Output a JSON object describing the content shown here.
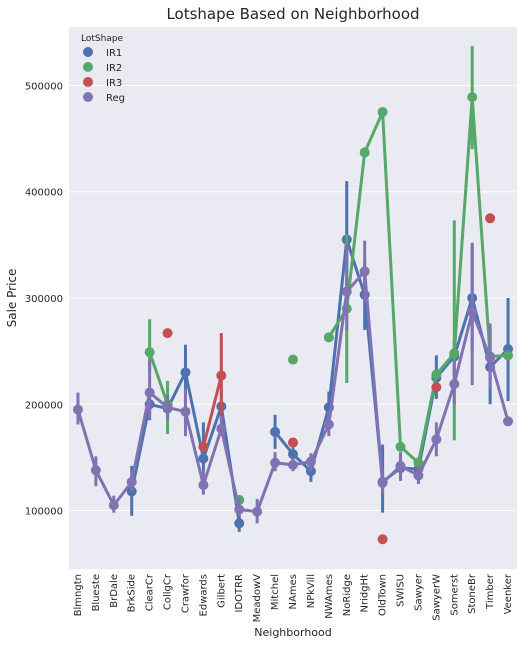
{
  "chart_data": {
    "type": "line",
    "title": "Lotshape Based on Neighborhood",
    "xlabel": "Neighborhood",
    "ylabel": "Sale Price",
    "ylim": [
      45000,
      555000
    ],
    "yticks": [
      100000,
      200000,
      300000,
      400000,
      500000
    ],
    "ytick_labels": [
      "100000",
      "200000",
      "300000",
      "400000",
      "500000"
    ],
    "grid": true,
    "legend_position": "top-left",
    "legend_title": "LotShape",
    "categories": [
      "Blmngtn",
      "Blueste",
      "BrDale",
      "BrkSide",
      "ClearCr",
      "CollgCr",
      "Crawfor",
      "Edwards",
      "Gilbert",
      "IDOTRR",
      "MeadowV",
      "Mitchel",
      "NAmes",
      "NPkVill",
      "NWAmes",
      "NoRidge",
      "NridgHt",
      "OldTown",
      "SWISU",
      "Sawyer",
      "SawyerW",
      "Somerst",
      "StoneBr",
      "Timber",
      "Veenker"
    ],
    "series": [
      {
        "name": "IR1",
        "color": "#4c72b0",
        "values": [
          null,
          null,
          null,
          118000,
          200000,
          196000,
          230000,
          149000,
          198000,
          88000,
          null,
          174000,
          153000,
          137000,
          197000,
          355000,
          303000,
          127000,
          140000,
          139000,
          225000,
          245000,
          300000,
          235000,
          252000
        ],
        "ci_low": [
          null,
          null,
          null,
          95000,
          185000,
          185000,
          200000,
          130000,
          180000,
          80000,
          null,
          158000,
          140000,
          127000,
          182000,
          310000,
          270000,
          98000,
          128000,
          130000,
          205000,
          230000,
          250000,
          200000,
          203000
        ],
        "ci_high": [
          null,
          null,
          null,
          142000,
          215000,
          208000,
          256000,
          183000,
          216000,
          96000,
          null,
          190000,
          165000,
          148000,
          212000,
          410000,
          335000,
          162000,
          152000,
          150000,
          246000,
          260000,
          350000,
          270000,
          300000
        ]
      },
      {
        "name": "IR2",
        "color": "#55a868",
        "values": [
          null,
          null,
          null,
          null,
          249000,
          200000,
          null,
          null,
          null,
          110000,
          null,
          null,
          242000,
          null,
          263000,
          290000,
          437000,
          475000,
          160000,
          145000,
          228000,
          248000,
          489000,
          245000,
          246000
        ],
        "ci_low": [
          null,
          null,
          null,
          null,
          230000,
          172000,
          null,
          null,
          null,
          null,
          null,
          null,
          null,
          null,
          null,
          220000,
          null,
          null,
          null,
          null,
          null,
          166000,
          440000,
          null,
          null
        ],
        "ci_high": [
          null,
          null,
          null,
          null,
          280000,
          222000,
          null,
          null,
          null,
          null,
          null,
          null,
          null,
          null,
          null,
          360000,
          null,
          null,
          null,
          null,
          null,
          373000,
          537000,
          null,
          null
        ]
      },
      {
        "name": "IR3",
        "color": "#c44e52",
        "values": [
          null,
          null,
          null,
          null,
          null,
          267000,
          null,
          160000,
          227000,
          null,
          null,
          null,
          164000,
          null,
          null,
          null,
          null,
          73000,
          null,
          null,
          216000,
          null,
          null,
          375000,
          null
        ],
        "ci_low": [
          null,
          null,
          null,
          null,
          null,
          null,
          null,
          157000,
          190000,
          null,
          null,
          null,
          null,
          null,
          null,
          null,
          null,
          null,
          null,
          null,
          null,
          null,
          null,
          null,
          null
        ],
        "ci_high": [
          null,
          null,
          null,
          null,
          null,
          null,
          null,
          164000,
          267000,
          null,
          null,
          null,
          null,
          null,
          null,
          null,
          null,
          null,
          null,
          null,
          null,
          null,
          null,
          null,
          null
        ]
      },
      {
        "name": "Reg",
        "color": "#8172b2",
        "values": [
          195000,
          138000,
          105000,
          127000,
          211000,
          197000,
          193000,
          124000,
          177000,
          101000,
          99000,
          145000,
          143000,
          146000,
          181000,
          306000,
          325000,
          126000,
          142000,
          133000,
          167000,
          219000,
          287000,
          244000,
          184000
        ],
        "ci_low": [
          181000,
          123000,
          98000,
          118000,
          186000,
          186000,
          170000,
          115000,
          170000,
          94000,
          88000,
          137000,
          137000,
          137000,
          170000,
          270000,
          296000,
          115000,
          128000,
          125000,
          151000,
          200000,
          218000,
          215000,
          184000
        ],
        "ci_high": [
          211000,
          151000,
          114000,
          137000,
          242000,
          209000,
          215000,
          138000,
          189000,
          111000,
          111000,
          155000,
          150000,
          154000,
          193000,
          350000,
          354000,
          137000,
          155000,
          142000,
          183000,
          241000,
          352000,
          276000,
          184000
        ]
      }
    ]
  }
}
